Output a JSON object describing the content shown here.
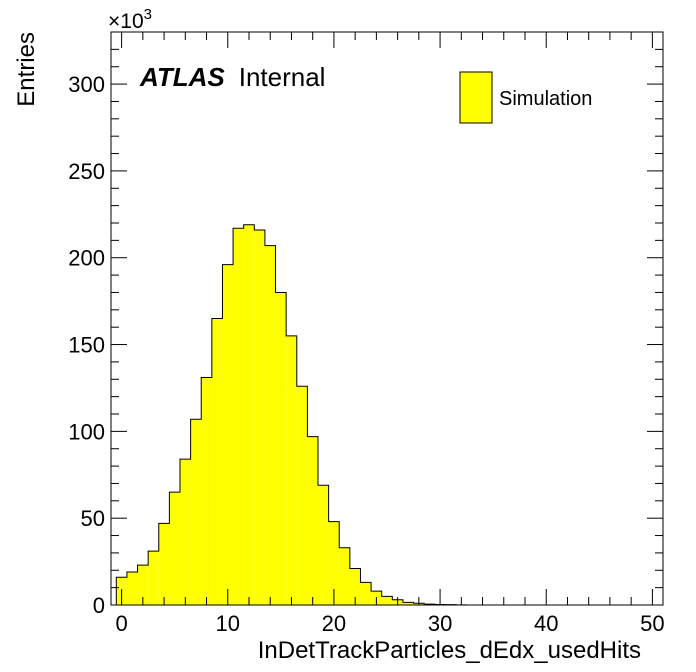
{
  "chart_data": {
    "type": "bar",
    "xlabel": "InDetTrackParticles_dEdx_usedHits",
    "ylabel": "Entries",
    "y_multiplier_label": "×10",
    "y_multiplier_exp": "3",
    "xlim": [
      -1,
      51
    ],
    "ylim": [
      0,
      330
    ],
    "x_ticks": [
      0,
      10,
      20,
      30,
      40,
      50
    ],
    "y_ticks": [
      0,
      50,
      100,
      150,
      200,
      250,
      300
    ],
    "bin_width": 1,
    "bin_edges_start": -0.5,
    "values": [
      16,
      19,
      23,
      31,
      47,
      65,
      84,
      107,
      131,
      165,
      196,
      217,
      219,
      216,
      207,
      180,
      155,
      126,
      97,
      69,
      48,
      33,
      21,
      13,
      8,
      5,
      3,
      1.5,
      1,
      0.5,
      0.3,
      0.2,
      0.1,
      0,
      0,
      0,
      0,
      0,
      0,
      0,
      0,
      0,
      0,
      0,
      0,
      0,
      0,
      0,
      0,
      0,
      0
    ],
    "fill_color": "#ffff00",
    "legend": {
      "entries": [
        {
          "label": "Simulation",
          "color": "#ffff00"
        }
      ],
      "placement": "top-right"
    },
    "annotation": {
      "bold": "ATLAS",
      "text": "Internal"
    }
  }
}
